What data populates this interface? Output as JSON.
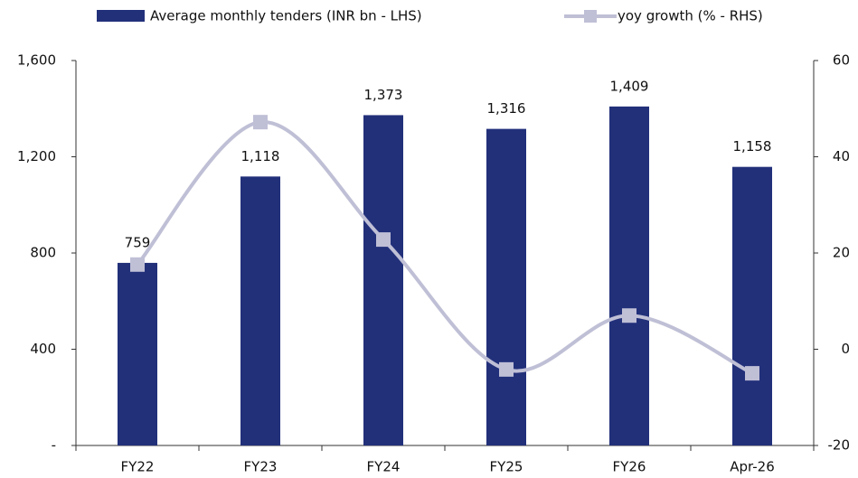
{
  "chart_data": {
    "type": "bar",
    "categories": [
      "FY22",
      "FY23",
      "FY24",
      "FY25",
      "FY26",
      "Apr-26"
    ],
    "series": [
      {
        "name": "Average monthly tenders (INR bn - LHS)",
        "type": "bar",
        "color": "#22307a",
        "values": [
          759,
          1118,
          1373,
          1316,
          1409,
          1158
        ],
        "value_labels": [
          "759",
          "1,118",
          "1,373",
          "1,316",
          "1,409",
          "1,158"
        ]
      },
      {
        "name": "yoy growth (% - RHS)",
        "type": "line",
        "axis": "y2",
        "color": "#bfbfd6",
        "values": [
          17.6,
          47.2,
          22.8,
          -4.2,
          7.0,
          -5.0
        ]
      }
    ],
    "ylim": [
      0,
      1600
    ],
    "yticks": [
      {
        "value": 0,
        "label": "-"
      },
      400,
      800,
      {
        "value": 1200,
        "label": "1,200"
      },
      {
        "value": 1600,
        "label": "1,600"
      }
    ],
    "y2lim": [
      -20,
      60
    ],
    "y2ticks": [
      -20,
      0,
      20,
      40,
      60
    ],
    "legend": "top"
  }
}
